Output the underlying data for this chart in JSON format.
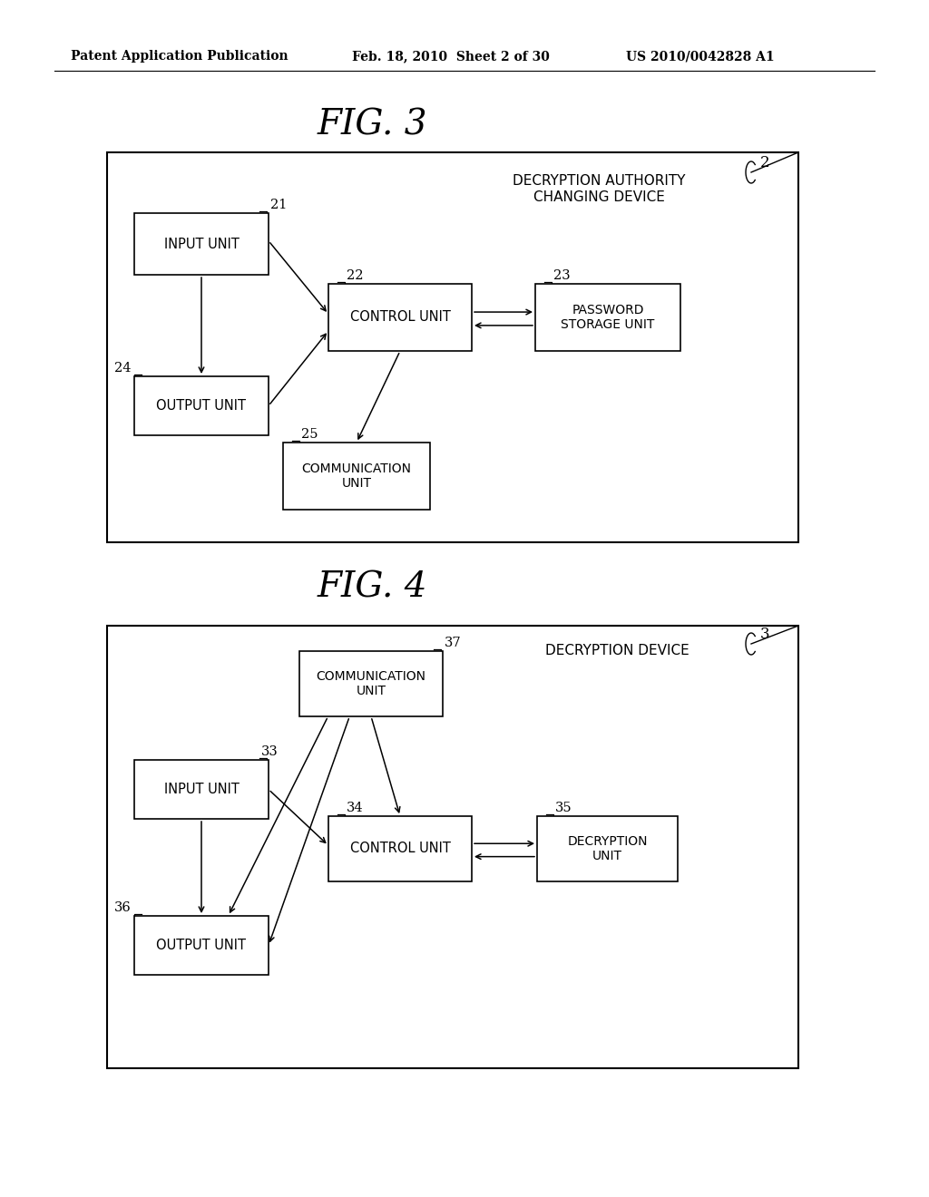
{
  "bg_color": "#ffffff",
  "header_left": "Patent Application Publication",
  "header_mid": "Feb. 18, 2010  Sheet 2 of 30",
  "header_right": "US 2010/0042828 A1",
  "fig3_title": "FIG. 3",
  "fig4_title": "FIG. 4",
  "fig3_device_label_line1": "DECRYPTION AUTHORITY",
  "fig3_device_label_line2": "CHANGING DEVICE",
  "fig3_ref": "2",
  "fig4_device_label": "DECRYPTION DEVICE",
  "fig4_ref": "3"
}
